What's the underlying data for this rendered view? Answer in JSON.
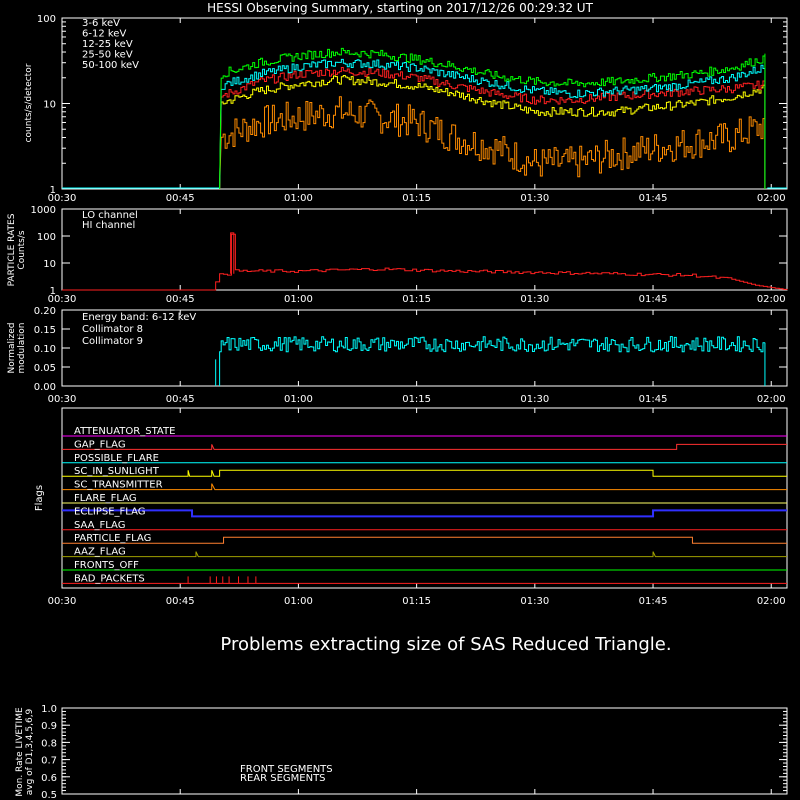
{
  "header": {
    "title": "HESSI Observing Summary, starting on 2017/12/26 00:29:32 UT"
  },
  "time_ticks": [
    "00:30",
    "00:45",
    "01:00",
    "01:15",
    "01:30",
    "01:45",
    "02:00"
  ],
  "message": "Problems extracting size of SAS Reduced Triangle.",
  "chart_data": [
    {
      "type": "line",
      "panel": "count-rates",
      "ylabel": "counts/s/detector",
      "yscale": "log",
      "ylim": [
        1,
        100
      ],
      "y_ticks": [
        "1",
        "10",
        "100"
      ],
      "xlim_minutes": [
        0,
        92
      ],
      "x_ticks": [
        "00:30",
        "00:45",
        "01:00",
        "01:15",
        "01:30",
        "01:45",
        "02:00"
      ],
      "series": [
        {
          "name": "3-6 keV",
          "color": "#ff2020",
          "x": [
            20,
            25,
            30,
            35,
            40,
            45,
            50,
            55,
            60,
            65,
            70,
            75,
            80,
            85,
            90
          ],
          "values": [
            12,
            18,
            22,
            24,
            23,
            20,
            16,
            13,
            11,
            11,
            12,
            13,
            14,
            15,
            17
          ]
        },
        {
          "name": "6-12 keV",
          "color": "#ff8c00",
          "x": [
            20,
            25,
            30,
            35,
            40,
            45,
            50,
            55,
            60,
            65,
            70,
            75,
            80,
            85,
            90
          ],
          "values": [
            4,
            6,
            7,
            8,
            7,
            6,
            4,
            3,
            2,
            2,
            2.5,
            3,
            3.5,
            4,
            6
          ]
        },
        {
          "name": "12-25 keV",
          "color": "#ffff00",
          "x": [
            20,
            25,
            30,
            35,
            40,
            45,
            50,
            55,
            60,
            65,
            70,
            75,
            80,
            85,
            90
          ],
          "values": [
            10,
            14,
            17,
            19,
            18,
            16,
            13,
            10,
            8,
            8,
            8,
            9,
            10,
            12,
            16
          ]
        },
        {
          "name": "25-50 keV",
          "color": "#00ff00",
          "x": [
            20,
            25,
            30,
            35,
            40,
            45,
            50,
            55,
            60,
            65,
            70,
            75,
            80,
            85,
            90
          ],
          "values": [
            22,
            30,
            36,
            40,
            38,
            33,
            27,
            21,
            18,
            17,
            18,
            20,
            22,
            26,
            36
          ]
        },
        {
          "name": "50-100 keV",
          "color": "#00ffff",
          "x": [
            20,
            25,
            30,
            35,
            40,
            45,
            50,
            55,
            60,
            65,
            70,
            75,
            80,
            85,
            90
          ],
          "values": [
            16,
            22,
            27,
            30,
            29,
            26,
            21,
            17,
            14,
            13,
            14,
            15,
            17,
            20,
            28
          ]
        }
      ]
    },
    {
      "type": "line",
      "panel": "particle-rates",
      "ylabel": "PARTICLE RATES Counts/s",
      "yscale": "log",
      "ylim": [
        1,
        1000
      ],
      "y_ticks": [
        "1",
        "10",
        "100",
        "1000"
      ],
      "series": [
        {
          "name": "LO channel",
          "color": "#ff2020",
          "x": [
            0,
            19,
            20,
            21,
            21.5,
            22,
            30,
            40,
            50,
            60,
            70,
            80,
            85,
            88,
            92
          ],
          "values": [
            1,
            1,
            4,
            4,
            130,
            5,
            5,
            6,
            5,
            4.5,
            4,
            3.5,
            2.5,
            1.5,
            1
          ]
        },
        {
          "name": "HI channel",
          "color": "#cc2040",
          "x": [
            0,
            92
          ],
          "values": [
            1,
            1
          ]
        }
      ]
    },
    {
      "type": "line",
      "panel": "modulation",
      "ylabel": "Normalized modulation",
      "ylim": [
        0,
        0.2
      ],
      "y_ticks": [
        "0.00",
        "0.05",
        "0.10",
        "0.15",
        "0.20"
      ],
      "annotation": "Energy band: 6-12 keV",
      "series": [
        {
          "name": "Collimator 8",
          "color": "#00ffff",
          "x": [
            20,
            25,
            30,
            35,
            40,
            45,
            50,
            55,
            60,
            65,
            70,
            75,
            80,
            85,
            89.5
          ],
          "values": [
            0.11,
            0.11,
            0.11,
            0.11,
            0.11,
            0.11,
            0.11,
            0.11,
            0.11,
            0.11,
            0.11,
            0.11,
            0.11,
            0.11,
            0.11
          ]
        },
        {
          "name": "Collimator 9",
          "color": "#ff00ff",
          "x": [],
          "values": []
        }
      ]
    }
  ],
  "flags_panel": {
    "ylabel": "Flags",
    "flags": [
      {
        "name": "ATTENUATOR_STATE",
        "color": "#ff00ff"
      },
      {
        "name": "GAP_FLAG",
        "color": "#ff3030"
      },
      {
        "name": "POSSIBLE_FLARE",
        "color": "#00ffff"
      },
      {
        "name": "SC_IN_SUNLIGHT",
        "color": "#ffff00"
      },
      {
        "name": "SC_TRANSMITTER",
        "color": "#ff8c00"
      },
      {
        "name": "FLARE_FLAG",
        "color": "#ffff66"
      },
      {
        "name": "ECLIPSE_FLAG",
        "color": "#3030ff"
      },
      {
        "name": "SAA_FLAG",
        "color": "#ff2020"
      },
      {
        "name": "PARTICLE_FLAG",
        "color": "#ff8030"
      },
      {
        "name": "AAZ_FLAG",
        "color": "#a0a000"
      },
      {
        "name": "FRONTS_OFF",
        "color": "#00ff00"
      },
      {
        "name": "BAD_PACKETS",
        "color": "#ff2020"
      }
    ]
  },
  "livetime_panel": {
    "ylabel": "Mon. Rate LIVETIME avg of D1,3,4,5,6,9",
    "y_ticks": [
      "0.5",
      "0.6",
      "0.7",
      "0.8",
      "0.9",
      "1.0"
    ],
    "legend": [
      {
        "name": "FRONT SEGMENTS",
        "color": "#00ff00"
      },
      {
        "name": "REAR SEGMENTS",
        "color": "#00aa00"
      }
    ]
  }
}
